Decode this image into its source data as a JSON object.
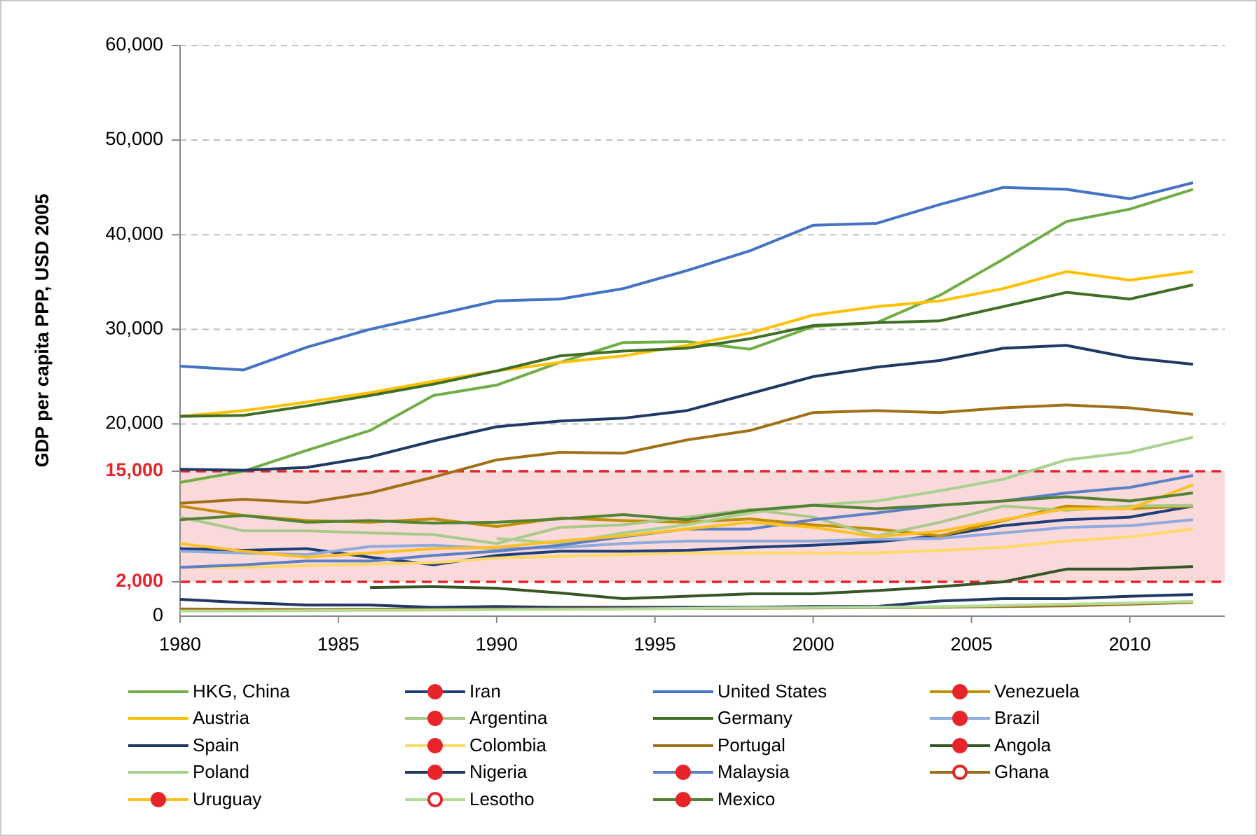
{
  "chart_data": {
    "type": "line",
    "y_label": "GDP per capita PPP, USD 2005",
    "x": [
      1980,
      1982,
      1984,
      1986,
      1988,
      1990,
      1992,
      1994,
      1996,
      1998,
      2000,
      2002,
      2004,
      2006,
      2008,
      2010,
      2012
    ],
    "xlim": [
      1980,
      2013
    ],
    "xticks": [
      1980,
      1985,
      1990,
      1995,
      2000,
      2005,
      2010
    ],
    "ylim": [
      0,
      60000
    ],
    "yticks": [
      0,
      {
        "value": 2000,
        "label": "2,000"
      },
      {
        "value": 15000,
        "label": "15,000"
      },
      {
        "value": 20000,
        "label": "20,000"
      },
      {
        "value": 30000,
        "label": "30,000"
      },
      {
        "value": 40000,
        "label": "40,000"
      },
      {
        "value": 50000,
        "label": "50,000"
      },
      {
        "value": 60000,
        "label": "60,000"
      }
    ],
    "highlight_band": {
      "from": 2000,
      "to": 15000,
      "color": "#e8242b",
      "fill": "#f9d9da"
    },
    "grid": true,
    "legend": "bottom",
    "marker_color": "#e8242b",
    "series": [
      {
        "name": "HKG, China",
        "color": "#70ad47",
        "values": [
          13680,
          15000,
          17200,
          19300,
          23000,
          24100,
          26500,
          28600,
          28700,
          27900,
          30300,
          30700,
          33600,
          37400,
          41400,
          42700,
          44800
        ]
      },
      {
        "name": "Iran",
        "color": "#1f3f7a",
        "legend_marker": "dot",
        "values": [
          5900,
          5700,
          5900,
          4900,
          4000,
          5100,
          5600,
          5600,
          5700,
          6050,
          6300,
          6700,
          7400,
          8600,
          9300,
          9600,
          10900
        ]
      },
      {
        "name": "United States",
        "color": "#4472c4",
        "values": [
          26100,
          25700,
          28100,
          30000,
          31500,
          33000,
          33200,
          34300,
          36200,
          38300,
          41000,
          41200,
          43200,
          45000,
          44800,
          43800,
          45500
        ]
      },
      {
        "name": "Venezuela",
        "color": "#bf8f00",
        "legend_marker": "dot",
        "values": [
          10900,
          9800,
          9200,
          9000,
          9400,
          8500,
          9500,
          9200,
          9000,
          9400,
          8700,
          8200,
          7400,
          9200,
          10900,
          10600,
          10900
        ]
      },
      {
        "name": "Austria",
        "color": "#ffc000",
        "values": [
          20800,
          21400,
          22300,
          23300,
          24500,
          25600,
          26500,
          27200,
          28300,
          29600,
          31500,
          32400,
          33000,
          34300,
          36100,
          35200,
          36100
        ]
      },
      {
        "name": "Argentina",
        "color": "#a9c98a",
        "legend_marker": "dot",
        "values": [
          9600,
          8000,
          8000,
          7750,
          7550,
          6500,
          8400,
          8700,
          9600,
          10500,
          9600,
          7400,
          9000,
          10900,
          10400,
          10900,
          11000
        ]
      },
      {
        "name": "Germany",
        "color": "#3f6e26",
        "values": [
          20800,
          20900,
          21900,
          23000,
          24200,
          25600,
          27200,
          27700,
          28000,
          29000,
          30400,
          30700,
          30900,
          32400,
          33900,
          33200,
          34700
        ]
      },
      {
        "name": "Brazil",
        "color": "#8faadc",
        "legend_marker": "dot",
        "values": [
          5600,
          5400,
          5200,
          6150,
          6300,
          5900,
          6050,
          6500,
          6800,
          6800,
          6800,
          7000,
          7100,
          7750,
          8400,
          8600,
          9300
        ]
      },
      {
        "name": "Spain",
        "color": "#1f3864",
        "values": [
          15200,
          15100,
          15400,
          16500,
          18200,
          19700,
          20300,
          20600,
          21400,
          23200,
          25000,
          26000,
          26700,
          28000,
          28300,
          27000,
          26300
        ]
      },
      {
        "name": "Colombia",
        "color": "#ffd966",
        "legend_marker": "dot",
        "values": [
          3700,
          3700,
          3900,
          4100,
          4250,
          4800,
          5000,
          5200,
          5400,
          5400,
          5400,
          5400,
          5700,
          6050,
          6800,
          7300,
          8200
        ]
      },
      {
        "name": "Portugal",
        "color": "#a07018",
        "values": [
          11230,
          11700,
          11300,
          12450,
          14300,
          16200,
          17000,
          16900,
          18300,
          19300,
          21200,
          21400,
          21200,
          21700,
          22000,
          21700,
          21000
        ]
      },
      {
        "name": "Angola",
        "color": "#375623",
        "legend_marker": "dot",
        "values": [
          null,
          null,
          null,
          1670,
          1720,
          1630,
          1350,
          1020,
          1160,
          1300,
          1300,
          1490,
          1720,
          2000,
          3500,
          3500,
          3800
        ]
      },
      {
        "name": "Poland",
        "color": "#a9d18e",
        "values": [
          null,
          null,
          null,
          null,
          null,
          7100,
          6500,
          7750,
          8700,
          10100,
          11000,
          11500,
          12700,
          14060,
          16200,
          17000,
          18600
        ]
      },
      {
        "name": "Nigeria",
        "color": "#203864",
        "legend_marker": "dot",
        "values": [
          980,
          790,
          650,
          650,
          510,
          560,
          510,
          510,
          510,
          510,
          560,
          560,
          880,
          1020,
          1020,
          1160,
          1260
        ]
      },
      {
        "name": "Malaysia",
        "color": "#5b80c8",
        "legend_marker": "dot",
        "values": [
          3700,
          4000,
          4450,
          4450,
          5100,
          5600,
          6300,
          7300,
          8200,
          8200,
          9300,
          10100,
          11000,
          11500,
          12450,
          13100,
          14500
        ]
      },
      {
        "name": "Ghana",
        "color": "#9c6d1a",
        "legend_marker": "ring",
        "values": [
          420,
          400,
          380,
          400,
          410,
          420,
          430,
          440,
          450,
          460,
          480,
          500,
          520,
          560,
          600,
          700,
          800
        ]
      },
      {
        "name": "Uruguay",
        "color": "#ffc020",
        "legend_marker": "dot",
        "values": [
          6500,
          5600,
          4900,
          5400,
          5900,
          6050,
          6800,
          7400,
          8200,
          9000,
          8400,
          7300,
          7950,
          9300,
          10600,
          10600,
          13400
        ]
      },
      {
        "name": "Lesotho",
        "color": "#b4dc96",
        "legend_marker": "ring",
        "values": [
          300,
          300,
          320,
          340,
          350,
          380,
          400,
          420,
          450,
          480,
          500,
          520,
          560,
          620,
          700,
          760,
          860
        ]
      },
      {
        "name": "Mexico",
        "color": "#548235",
        "legend_marker": "dot",
        "values": [
          9300,
          9800,
          9000,
          9200,
          8900,
          9000,
          9400,
          9900,
          9300,
          10400,
          11000,
          10600,
          11000,
          11500,
          12000,
          11500,
          12450
        ]
      }
    ]
  }
}
